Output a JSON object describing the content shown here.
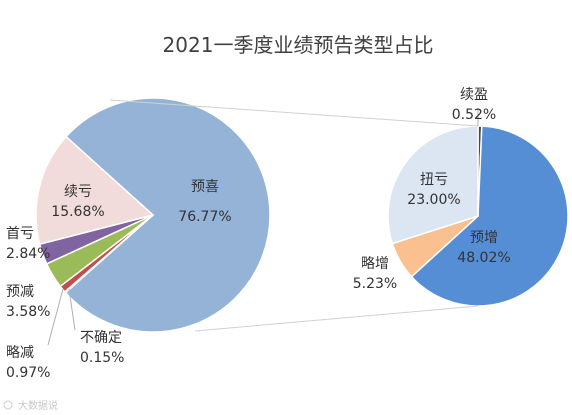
{
  "chart_data": {
    "type": "pie",
    "title": "2021一季度业绩预告类型占比",
    "main_pie": {
      "slices": [
        {
          "name": "预喜",
          "value_label": "76.77%",
          "value": 76.77,
          "color": "#95b3d7"
        },
        {
          "name": "不确定",
          "value_label": "0.15%",
          "value": 0.15,
          "color": "#4f81bd"
        },
        {
          "name": "略减",
          "value_label": "0.97%",
          "value": 0.97,
          "color": "#c0504d"
        },
        {
          "name": "预减",
          "value_label": "3.58%",
          "value": 3.58,
          "color": "#9bbb59"
        },
        {
          "name": "首亏",
          "value_label": "2.84%",
          "value": 2.84,
          "color": "#8064a2"
        },
        {
          "name": "续亏",
          "value_label": "15.68%",
          "value": 15.68,
          "color": "#f2dcdb"
        }
      ]
    },
    "detail_pie": {
      "slices": [
        {
          "name": "续盈",
          "value_label": "0.52%",
          "value": 0.52,
          "color": "#4a4a4a"
        },
        {
          "name": "预增",
          "value_label": "48.02%",
          "value": 48.02,
          "color": "#558ed5"
        },
        {
          "name": "略增",
          "value_label": "5.23%",
          "value": 5.23,
          "color": "#fac090"
        },
        {
          "name": "扭亏",
          "value_label": "23.00%",
          "value": 23.0,
          "color": "#dce6f2"
        }
      ]
    },
    "legend": "none",
    "grid": false
  },
  "watermark": "大数据说"
}
